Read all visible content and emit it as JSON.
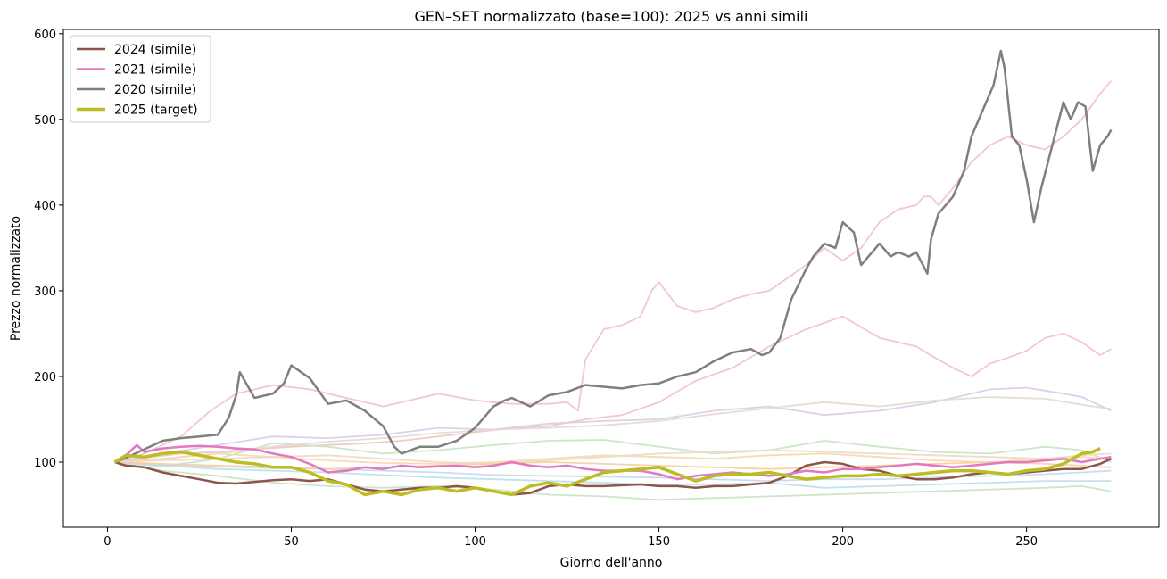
{
  "chart_data": {
    "type": "line",
    "title": "GEN–SET normalizzato (base=100): 2025 vs anni simili",
    "xlabel": "Giorno dell'anno",
    "ylabel": "Prezzo normalizzato",
    "xlim": [
      -12,
      286
    ],
    "ylim": [
      24,
      605
    ],
    "xticks": [
      0,
      50,
      100,
      150,
      200,
      250
    ],
    "yticks": [
      100,
      200,
      300,
      400,
      500,
      600
    ],
    "grid": false,
    "legend_position": "top-left",
    "legend": [
      "2024 (simile)",
      "2021 (simile)",
      "2020 (simile)",
      "2025 (target)"
    ],
    "highlight_series": [
      {
        "name": "2024 (simile)",
        "color": "#8c564b",
        "x": [
          2,
          5,
          10,
          15,
          20,
          25,
          30,
          35,
          40,
          45,
          50,
          55,
          60,
          65,
          70,
          75,
          80,
          85,
          90,
          95,
          100,
          105,
          110,
          115,
          120,
          125,
          130,
          135,
          140,
          145,
          150,
          155,
          160,
          165,
          170,
          175,
          180,
          185,
          190,
          195,
          200,
          205,
          210,
          215,
          220,
          225,
          230,
          235,
          240,
          245,
          250,
          255,
          260,
          265,
          270,
          273
        ],
        "y": [
          100,
          96,
          94,
          88,
          84,
          80,
          76,
          75,
          77,
          79,
          80,
          78,
          80,
          74,
          68,
          66,
          68,
          70,
          70,
          72,
          70,
          66,
          62,
          64,
          72,
          74,
          72,
          72,
          73,
          74,
          72,
          72,
          70,
          72,
          72,
          74,
          76,
          84,
          96,
          100,
          98,
          92,
          90,
          84,
          80,
          80,
          82,
          86,
          88,
          86,
          88,
          90,
          92,
          92,
          98,
          104
        ]
      },
      {
        "name": "2021 (simile)",
        "color": "#e377c2",
        "x": [
          2,
          5,
          8,
          10,
          15,
          20,
          25,
          30,
          35,
          40,
          45,
          50,
          55,
          60,
          65,
          70,
          75,
          80,
          85,
          90,
          95,
          100,
          105,
          110,
          115,
          120,
          125,
          130,
          135,
          140,
          145,
          150,
          155,
          160,
          165,
          170,
          175,
          180,
          185,
          190,
          195,
          200,
          205,
          210,
          215,
          220,
          225,
          230,
          235,
          240,
          245,
          250,
          255,
          260,
          265,
          270,
          273
        ],
        "y": [
          100,
          108,
          120,
          112,
          116,
          118,
          119,
          118,
          116,
          115,
          110,
          106,
          98,
          88,
          90,
          94,
          92,
          96,
          94,
          95,
          96,
          94,
          96,
          100,
          96,
          94,
          96,
          92,
          90,
          90,
          90,
          86,
          80,
          84,
          86,
          88,
          86,
          84,
          86,
          90,
          88,
          92,
          92,
          94,
          96,
          98,
          96,
          94,
          96,
          98,
          100,
          100,
          102,
          104,
          100,
          104,
          106
        ]
      },
      {
        "name": "2020 (simile)",
        "color": "#7f7f7f",
        "x": [
          2,
          5,
          10,
          15,
          20,
          25,
          30,
          33,
          35,
          36,
          40,
          45,
          48,
          50,
          55,
          60,
          65,
          70,
          75,
          78,
          80,
          85,
          90,
          95,
          100,
          103,
          105,
          108,
          110,
          115,
          120,
          125,
          130,
          135,
          140,
          145,
          150,
          155,
          160,
          165,
          170,
          175,
          178,
          180,
          183,
          186,
          190,
          192,
          195,
          198,
          200,
          203,
          205,
          210,
          213,
          215,
          218,
          220,
          223,
          224,
          226,
          230,
          233,
          235,
          238,
          241,
          243,
          244,
          246,
          248,
          250,
          252,
          254,
          257,
          260,
          262,
          264,
          266,
          268,
          270,
          272,
          273
        ],
        "y": [
          100,
          105,
          115,
          125,
          128,
          130,
          132,
          152,
          178,
          205,
          175,
          180,
          192,
          213,
          198,
          168,
          172,
          160,
          142,
          118,
          110,
          118,
          118,
          125,
          140,
          155,
          165,
          172,
          175,
          165,
          178,
          182,
          190,
          188,
          186,
          190,
          192,
          200,
          205,
          218,
          228,
          232,
          225,
          228,
          245,
          290,
          325,
          340,
          355,
          350,
          380,
          368,
          330,
          355,
          340,
          345,
          340,
          345,
          320,
          360,
          390,
          410,
          440,
          480,
          510,
          540,
          580,
          560,
          480,
          470,
          430,
          380,
          420,
          470,
          520,
          500,
          520,
          515,
          440,
          470,
          480,
          488
        ]
      },
      {
        "name": "2025 (target)",
        "color": "#bcbd22",
        "x": [
          2,
          5,
          10,
          15,
          20,
          25,
          30,
          35,
          40,
          45,
          50,
          55,
          60,
          65,
          70,
          75,
          80,
          85,
          90,
          95,
          100,
          105,
          110,
          115,
          120,
          125,
          130,
          135,
          140,
          145,
          150,
          155,
          160,
          165,
          170,
          175,
          180,
          185,
          190,
          195,
          200,
          205,
          210,
          215,
          220,
          225,
          230,
          235,
          240,
          245,
          250,
          255,
          260,
          265,
          268,
          270
        ],
        "y": [
          100,
          108,
          106,
          110,
          112,
          108,
          104,
          100,
          98,
          94,
          94,
          88,
          78,
          74,
          62,
          66,
          62,
          68,
          70,
          66,
          70,
          66,
          62,
          72,
          76,
          72,
          80,
          88,
          90,
          92,
          94,
          86,
          78,
          84,
          86,
          86,
          88,
          84,
          80,
          82,
          84,
          84,
          86,
          84,
          86,
          88,
          90,
          90,
          88,
          86,
          90,
          92,
          98,
          110,
          112,
          116
        ]
      }
    ],
    "background_series": [
      {
        "color": "#f2c2c2",
        "x": [
          2,
          10,
          20,
          28,
          35,
          45,
          55,
          65,
          75,
          90,
          100,
          110,
          120,
          125,
          128,
          130,
          135,
          140,
          145,
          148,
          150,
          155,
          160,
          165,
          170,
          175,
          180,
          185,
          190,
          195,
          200,
          205,
          210,
          215,
          220,
          222,
          224,
          226,
          230,
          235,
          240,
          245,
          250,
          255,
          260,
          265,
          270,
          273
        ],
        "y": [
          100,
          110,
          130,
          160,
          180,
          190,
          185,
          175,
          165,
          180,
          172,
          168,
          168,
          170,
          160,
          220,
          255,
          260,
          270,
          300,
          310,
          282,
          275,
          280,
          290,
          296,
          300,
          315,
          330,
          350,
          335,
          350,
          380,
          395,
          400,
          410,
          410,
          400,
          420,
          450,
          470,
          480,
          470,
          465,
          480,
          500,
          530,
          545
        ]
      },
      {
        "color": "#f2c2c2",
        "x": [
          2,
          10,
          20,
          30,
          40,
          50,
          60,
          70,
          80,
          90,
          100,
          110,
          120,
          130,
          140,
          150,
          160,
          170,
          180,
          190,
          200,
          210,
          220,
          225,
          230,
          235,
          240,
          245,
          250,
          255,
          260,
          265,
          270,
          273
        ],
        "y": [
          100,
          105,
          110,
          112,
          115,
          118,
          120,
          122,
          125,
          130,
          135,
          140,
          142,
          150,
          155,
          170,
          195,
          210,
          235,
          255,
          270,
          245,
          235,
          222,
          210,
          200,
          215,
          222,
          230,
          245,
          250,
          240,
          225,
          232
        ]
      },
      {
        "color": "#d8cce8",
        "x": [
          2,
          15,
          30,
          45,
          60,
          75,
          90,
          105,
          120,
          135,
          150,
          165,
          180,
          195,
          210,
          225,
          240,
          250,
          260,
          265,
          273
        ],
        "y": [
          100,
          110,
          120,
          130,
          128,
          132,
          140,
          138,
          145,
          148,
          150,
          160,
          165,
          155,
          160,
          170,
          185,
          187,
          180,
          176,
          160
        ]
      },
      {
        "color": "#e6d8d0",
        "x": [
          2,
          15,
          30,
          45,
          60,
          75,
          90,
          105,
          120,
          135,
          150,
          165,
          180,
          195,
          210,
          225,
          240,
          255,
          265,
          273
        ],
        "y": [
          100,
          104,
          110,
          118,
          124,
          128,
          134,
          138,
          140,
          143,
          148,
          156,
          163,
          170,
          165,
          172,
          176,
          174,
          167,
          162
        ]
      },
      {
        "color": "#c7e3c2",
        "x": [
          2,
          15,
          30,
          45,
          60,
          75,
          90,
          105,
          120,
          135,
          150,
          165,
          180,
          195,
          210,
          225,
          240,
          255,
          265,
          273
        ],
        "y": [
          100,
          95,
          104,
          122,
          118,
          110,
          114,
          120,
          125,
          126,
          118,
          110,
          114,
          125,
          118,
          112,
          110,
          118,
          114,
          100
        ]
      },
      {
        "color": "#c7e3c2",
        "x": [
          2,
          15,
          30,
          45,
          60,
          75,
          90,
          105,
          120,
          135,
          150,
          165,
          180,
          195,
          210,
          225,
          240,
          255,
          265,
          273
        ],
        "y": [
          100,
          90,
          84,
          76,
          72,
          70,
          72,
          68,
          62,
          60,
          56,
          58,
          60,
          62,
          64,
          66,
          68,
          70,
          72,
          66
        ]
      },
      {
        "color": "#b8e0e8",
        "x": [
          2,
          15,
          30,
          45,
          60,
          75,
          90,
          105,
          120,
          135,
          150,
          165,
          180,
          195,
          210,
          225,
          240,
          255,
          265,
          273
        ],
        "y": [
          100,
          96,
          92,
          90,
          88,
          85,
          82,
          80,
          78,
          76,
          74,
          74,
          76,
          70,
          72,
          74,
          76,
          78,
          78,
          78
        ]
      },
      {
        "color": "#c5d8ef",
        "x": [
          2,
          15,
          30,
          45,
          60,
          75,
          90,
          105,
          120,
          135,
          150,
          165,
          180,
          195,
          210,
          225,
          240,
          255,
          265,
          273
        ],
        "y": [
          100,
          97,
          95,
          93,
          92,
          90,
          88,
          85,
          84,
          83,
          82,
          80,
          78,
          80,
          80,
          82,
          84,
          86,
          88,
          90
        ]
      },
      {
        "color": "#f5d9a8",
        "x": [
          2,
          15,
          30,
          45,
          60,
          75,
          90,
          105,
          120,
          135,
          150,
          165,
          180,
          195,
          210,
          225,
          240,
          255,
          265,
          273
        ],
        "y": [
          100,
          104,
          110,
          106,
          102,
          99,
          98,
          100,
          104,
          108,
          106,
          104,
          108,
          110,
          106,
          102,
          100,
          104,
          106,
          104
        ]
      },
      {
        "color": "#ecd8c8",
        "x": [
          2,
          15,
          30,
          45,
          60,
          75,
          90,
          105,
          120,
          135,
          150,
          165,
          180,
          195,
          210,
          225,
          240,
          255,
          265,
          273
        ],
        "y": [
          100,
          102,
          104,
          106,
          108,
          104,
          100,
          98,
          102,
          106,
          110,
          112,
          114,
          112,
          110,
          108,
          106,
          104,
          108,
          110
        ]
      },
      {
        "color": "#f7ce9e",
        "x": [
          2,
          15,
          30,
          45,
          60,
          75,
          90,
          105,
          120,
          135,
          150,
          165,
          180,
          195,
          210,
          225,
          240,
          255,
          265,
          273
        ],
        "y": [
          100,
          98,
          96,
          94,
          92,
          94,
          96,
          98,
          100,
          98,
          96,
          94,
          92,
          94,
          96,
          98,
          100,
          98,
          96,
          94
        ]
      }
    ]
  }
}
